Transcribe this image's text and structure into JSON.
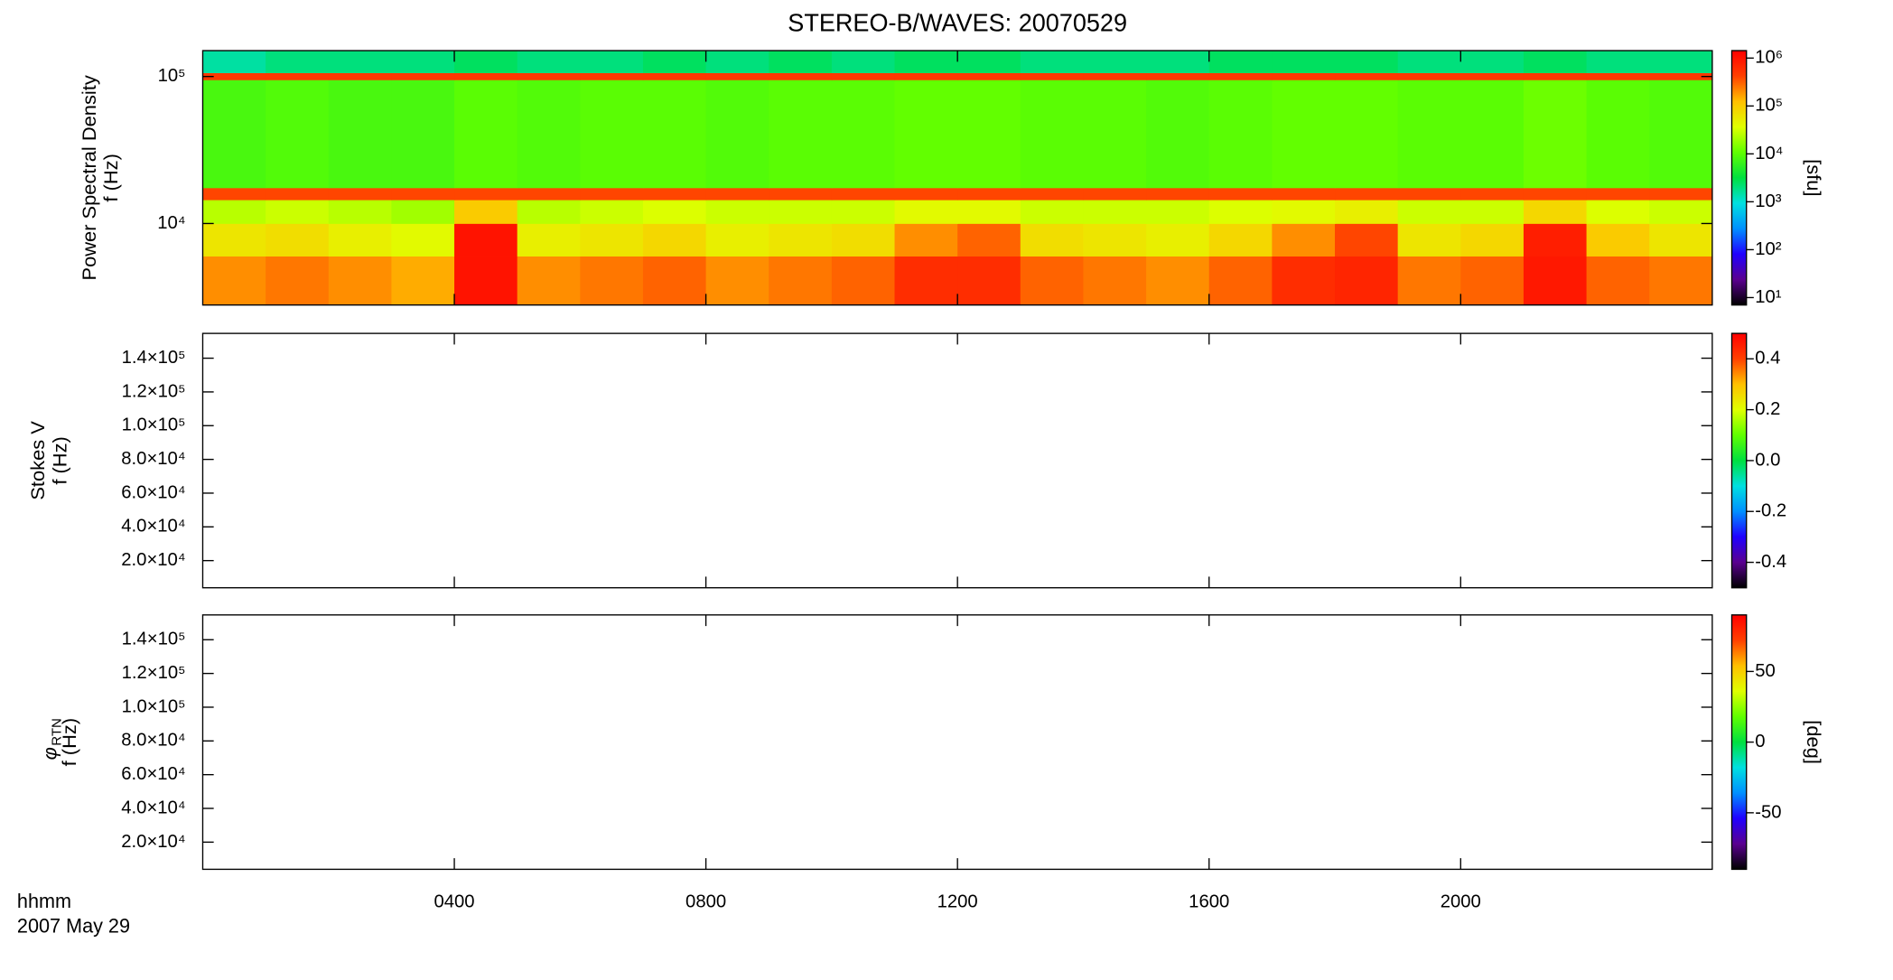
{
  "title": "STEREO-B/WAVES: 20070529",
  "x_axis": {
    "label": [
      "hhmm",
      "2007 May 29"
    ],
    "xlim": [
      0,
      24
    ],
    "xticks": [
      {
        "value": 4,
        "label": "0400"
      },
      {
        "value": 8,
        "label": "0800"
      },
      {
        "value": 12,
        "label": "1200"
      },
      {
        "value": 16,
        "label": "1600"
      },
      {
        "value": 20,
        "label": "2000"
      }
    ]
  },
  "colormap": [
    "#000000",
    "#5a0090",
    "#2000ff",
    "#0090ff",
    "#00e0e0",
    "#00e040",
    "#60ff00",
    "#e0ff00",
    "#ffc000",
    "#ff4000",
    "#ff0000"
  ],
  "chart_data": [
    {
      "type": "heatmap",
      "ylog": true,
      "ylabel": [
        "Power Spectral Density",
        "f (Hz)"
      ],
      "ylim": [
        2790,
        150000
      ],
      "yticks": [
        {
          "value": 10000,
          "label": "10⁴"
        },
        {
          "value": 100000,
          "label": "10⁵"
        }
      ],
      "x": [
        0,
        1,
        2,
        3,
        4,
        5,
        6,
        7,
        8,
        9,
        10,
        11,
        12,
        13,
        14,
        15,
        16,
        17,
        18,
        19,
        20,
        21,
        22,
        23,
        24
      ],
      "y": [
        2790,
        6000,
        10000,
        14500,
        17500,
        95000,
        106000,
        150000
      ],
      "z": [
        [
          200000,
          250000,
          200000,
          150000,
          1000000,
          200000,
          250000,
          300000,
          200000,
          250000,
          300000,
          600000,
          600000,
          300000,
          250000,
          200000,
          300000,
          600000,
          700000,
          250000,
          300000,
          900000,
          300000,
          250000
        ],
        [
          60000,
          70000,
          50000,
          40000,
          1000000,
          50000,
          60000,
          80000,
          50000,
          60000,
          70000,
          200000,
          300000,
          70000,
          60000,
          50000,
          80000,
          200000,
          400000,
          60000,
          80000,
          800000,
          100000,
          60000
        ],
        [
          25000,
          30000,
          25000,
          20000,
          100000,
          25000,
          30000,
          35000,
          30000,
          30000,
          30000,
          40000,
          40000,
          30000,
          30000,
          30000,
          35000,
          40000,
          50000,
          30000,
          30000,
          80000,
          35000,
          30000
        ],
        [
          400000,
          400000,
          400000,
          400000,
          400000,
          400000,
          400000,
          400000,
          400000,
          400000,
          400000,
          400000,
          400000,
          400000,
          400000,
          400000,
          400000,
          400000,
          400000,
          400000,
          400000,
          400000,
          400000,
          400000
        ],
        [
          8000,
          9000,
          8000,
          8000,
          10000,
          9000,
          10000,
          10000,
          9000,
          10000,
          10000,
          11000,
          11000,
          10000,
          10000,
          9000,
          10000,
          11000,
          11000,
          10000,
          10000,
          12000,
          10000,
          9000
        ],
        [
          500000,
          500000,
          500000,
          500000,
          500000,
          500000,
          500000,
          500000,
          500000,
          500000,
          500000,
          500000,
          500000,
          500000,
          500000,
          500000,
          500000,
          500000,
          500000,
          500000,
          500000,
          500000,
          500000,
          500000
        ],
        [
          1500,
          2000,
          2000,
          2000,
          2500,
          2000,
          2000,
          2500,
          2000,
          2500,
          2000,
          2500,
          2500,
          2000,
          2000,
          2000,
          2500,
          2500,
          2500,
          2000,
          2000,
          2500,
          2000,
          2000
        ]
      ],
      "colorbar": {
        "log": true,
        "clim": [
          7,
          1430000
        ],
        "label": "[sfu]",
        "ticks": [
          {
            "value": 10,
            "label": "10¹"
          },
          {
            "value": 100,
            "label": "10²"
          },
          {
            "value": 1000,
            "label": "10³"
          },
          {
            "value": 10000,
            "label": "10⁴"
          },
          {
            "value": 100000,
            "label": "10⁵"
          },
          {
            "value": 1000000,
            "label": "10⁶"
          }
        ]
      }
    },
    {
      "type": "heatmap",
      "ylog": false,
      "ylabel": [
        "Stokes V",
        "f (Hz)"
      ],
      "ylim": [
        3900,
        154700
      ],
      "yticks": [
        {
          "value": 20000,
          "label": "2.0×10⁴"
        },
        {
          "value": 40000,
          "label": "4.0×10⁴"
        },
        {
          "value": 60000,
          "label": "6.0×10⁴"
        },
        {
          "value": 80000,
          "label": "8.0×10⁴"
        },
        {
          "value": 100000,
          "label": "1.0×10⁵"
        },
        {
          "value": 120000,
          "label": "1.2×10⁵"
        },
        {
          "value": 140000,
          "label": "1.4×10⁵"
        }
      ],
      "colorbar": {
        "log": false,
        "clim": [
          -0.5,
          0.5
        ],
        "ticks": [
          -0.4,
          -0.2,
          {
            "value": 0,
            "label": "0.0"
          },
          0.2,
          0.4
        ]
      }
    },
    {
      "type": "heatmap",
      "ylog": false,
      "ylabel": [
        {
          "symbol": "φ",
          "subscript": "RTN"
        },
        "f (Hz)"
      ],
      "ylim": [
        3900,
        154700
      ],
      "yticks": [
        {
          "value": 20000,
          "label": "2.0×10⁴"
        },
        {
          "value": 40000,
          "label": "4.0×10⁴"
        },
        {
          "value": 60000,
          "label": "6.0×10⁴"
        },
        {
          "value": 80000,
          "label": "8.0×10⁴"
        },
        {
          "value": 100000,
          "label": "1.0×10⁵"
        },
        {
          "value": 120000,
          "label": "1.2×10⁵"
        },
        {
          "value": 140000,
          "label": "1.4×10⁵"
        }
      ],
      "colorbar": {
        "log": false,
        "clim": [
          -90,
          90
        ],
        "label": "[deg]",
        "ticks": [
          -50,
          0,
          50
        ]
      }
    }
  ]
}
